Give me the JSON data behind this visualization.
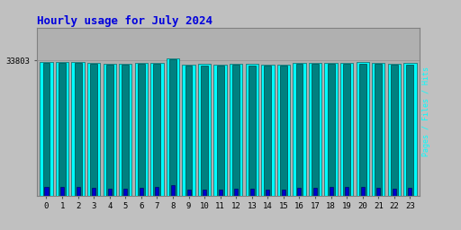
{
  "title": "Hourly usage for July 2024",
  "title_color": "#0000dd",
  "title_fontsize": 9,
  "hours": [
    0,
    1,
    2,
    3,
    4,
    5,
    6,
    7,
    8,
    9,
    10,
    11,
    12,
    13,
    14,
    15,
    16,
    17,
    18,
    19,
    20,
    21,
    22,
    23
  ],
  "hits": [
    33500,
    33450,
    33500,
    33100,
    33000,
    33000,
    33250,
    33280,
    34400,
    32750,
    32850,
    32780,
    32980,
    32850,
    32700,
    32780,
    33150,
    33280,
    33280,
    33280,
    33300,
    33280,
    33000,
    33100
  ],
  "files": [
    33200,
    33150,
    33200,
    32850,
    32700,
    32700,
    32980,
    33000,
    34150,
    32480,
    32580,
    32480,
    32700,
    32580,
    32420,
    32480,
    32900,
    33000,
    33000,
    33000,
    33020,
    33000,
    32700,
    32800
  ],
  "pages": [
    2200,
    2150,
    2200,
    1900,
    1700,
    1750,
    2000,
    2050,
    2700,
    1500,
    1550,
    1500,
    1700,
    1600,
    1400,
    1500,
    1900,
    2000,
    2050,
    2050,
    2050,
    2000,
    1750,
    1850
  ],
  "ytick_label": "33803",
  "bar_hits_color": "#00ffff",
  "bar_files_color": "#008080",
  "bar_pages_color": "#0000cc",
  "bg_color": "#c0c0c0",
  "plot_bg_color": "#b0b0b0",
  "border_color": "#808080",
  "ylim_max": 42000,
  "ylim_min": 0,
  "ylabel_pages_color": "#00cccc",
  "ylabel_files_color": "#006666",
  "ylabel_hits_color": "#00aaaa"
}
